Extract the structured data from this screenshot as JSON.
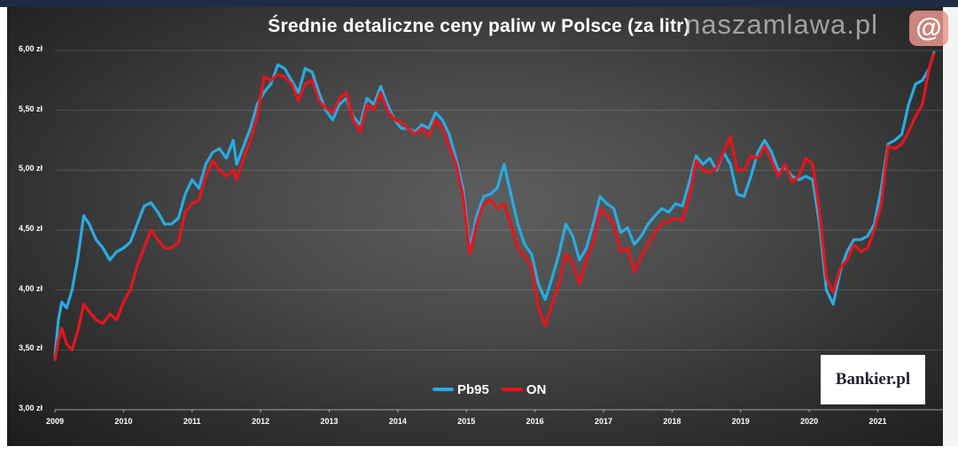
{
  "chart_data": {
    "type": "line",
    "title": "Średnie detaliczne ceny paliw w Polsce (za litr)",
    "xlabel": "",
    "ylabel": "",
    "ylim": [
      3.0,
      6.0
    ],
    "xlim": [
      2009,
      2021.95
    ],
    "yticks": [
      "6,00 zł",
      "5,50 zł",
      "5,00 zł",
      "4,50 zł",
      "4,00 zł",
      "3,50 zł",
      "3,00 zł"
    ],
    "ytick_values": [
      6.0,
      5.5,
      5.0,
      4.5,
      4.0,
      3.5,
      3.0
    ],
    "xticks": [
      "2009",
      "2010",
      "2011",
      "2012",
      "2013",
      "2014",
      "2015",
      "2016",
      "2017",
      "2018",
      "2019",
      "2020",
      "2021"
    ],
    "grid": true,
    "legend_position": "bottom-center",
    "series": [
      {
        "name": "Pb95",
        "color": "#29abe2",
        "points": [
          [
            2009.0,
            3.45
          ],
          [
            2009.05,
            3.75
          ],
          [
            2009.1,
            3.9
          ],
          [
            2009.17,
            3.85
          ],
          [
            2009.25,
            4.0
          ],
          [
            2009.33,
            4.25
          ],
          [
            2009.42,
            4.62
          ],
          [
            2009.5,
            4.55
          ],
          [
            2009.6,
            4.42
          ],
          [
            2009.7,
            4.35
          ],
          [
            2009.8,
            4.25
          ],
          [
            2009.9,
            4.32
          ],
          [
            2010.0,
            4.35
          ],
          [
            2010.1,
            4.4
          ],
          [
            2010.2,
            4.55
          ],
          [
            2010.3,
            4.7
          ],
          [
            2010.4,
            4.73
          ],
          [
            2010.5,
            4.65
          ],
          [
            2010.6,
            4.55
          ],
          [
            2010.7,
            4.55
          ],
          [
            2010.8,
            4.6
          ],
          [
            2010.9,
            4.8
          ],
          [
            2011.0,
            4.92
          ],
          [
            2011.1,
            4.85
          ],
          [
            2011.2,
            5.05
          ],
          [
            2011.3,
            5.15
          ],
          [
            2011.4,
            5.18
          ],
          [
            2011.5,
            5.1
          ],
          [
            2011.6,
            5.25
          ],
          [
            2011.65,
            5.05
          ],
          [
            2011.75,
            5.2
          ],
          [
            2011.85,
            5.35
          ],
          [
            2011.95,
            5.55
          ],
          [
            2012.05,
            5.65
          ],
          [
            2012.15,
            5.72
          ],
          [
            2012.25,
            5.88
          ],
          [
            2012.35,
            5.85
          ],
          [
            2012.45,
            5.75
          ],
          [
            2012.55,
            5.65
          ],
          [
            2012.65,
            5.85
          ],
          [
            2012.75,
            5.82
          ],
          [
            2012.85,
            5.65
          ],
          [
            2012.95,
            5.5
          ],
          [
            2013.05,
            5.42
          ],
          [
            2013.15,
            5.55
          ],
          [
            2013.25,
            5.6
          ],
          [
            2013.35,
            5.45
          ],
          [
            2013.45,
            5.38
          ],
          [
            2013.55,
            5.6
          ],
          [
            2013.65,
            5.55
          ],
          [
            2013.75,
            5.7
          ],
          [
            2013.85,
            5.55
          ],
          [
            2013.95,
            5.42
          ],
          [
            2014.05,
            5.35
          ],
          [
            2014.15,
            5.35
          ],
          [
            2014.25,
            5.32
          ],
          [
            2014.35,
            5.38
          ],
          [
            2014.45,
            5.35
          ],
          [
            2014.55,
            5.48
          ],
          [
            2014.65,
            5.42
          ],
          [
            2014.75,
            5.3
          ],
          [
            2014.85,
            5.1
          ],
          [
            2014.95,
            4.85
          ],
          [
            2015.05,
            4.35
          ],
          [
            2015.15,
            4.62
          ],
          [
            2015.25,
            4.78
          ],
          [
            2015.35,
            4.8
          ],
          [
            2015.45,
            4.85
          ],
          [
            2015.55,
            5.05
          ],
          [
            2015.65,
            4.8
          ],
          [
            2015.75,
            4.55
          ],
          [
            2015.85,
            4.38
          ],
          [
            2015.95,
            4.3
          ],
          [
            2016.05,
            4.05
          ],
          [
            2016.15,
            3.92
          ],
          [
            2016.25,
            4.1
          ],
          [
            2016.35,
            4.3
          ],
          [
            2016.45,
            4.55
          ],
          [
            2016.55,
            4.45
          ],
          [
            2016.65,
            4.25
          ],
          [
            2016.75,
            4.35
          ],
          [
            2016.85,
            4.55
          ],
          [
            2016.95,
            4.78
          ],
          [
            2017.05,
            4.72
          ],
          [
            2017.15,
            4.68
          ],
          [
            2017.25,
            4.48
          ],
          [
            2017.35,
            4.52
          ],
          [
            2017.45,
            4.38
          ],
          [
            2017.55,
            4.45
          ],
          [
            2017.65,
            4.55
          ],
          [
            2017.75,
            4.62
          ],
          [
            2017.85,
            4.68
          ],
          [
            2017.95,
            4.65
          ],
          [
            2018.05,
            4.72
          ],
          [
            2018.15,
            4.7
          ],
          [
            2018.25,
            4.9
          ],
          [
            2018.35,
            5.12
          ],
          [
            2018.45,
            5.05
          ],
          [
            2018.55,
            5.1
          ],
          [
            2018.65,
            5.0
          ],
          [
            2018.75,
            5.15
          ],
          [
            2018.85,
            5.05
          ],
          [
            2018.95,
            4.8
          ],
          [
            2019.05,
            4.78
          ],
          [
            2019.15,
            4.95
          ],
          [
            2019.25,
            5.15
          ],
          [
            2019.35,
            5.25
          ],
          [
            2019.45,
            5.15
          ],
          [
            2019.55,
            5.0
          ],
          [
            2019.65,
            5.02
          ],
          [
            2019.75,
            4.95
          ],
          [
            2019.85,
            4.92
          ],
          [
            2019.95,
            4.95
          ],
          [
            2020.05,
            4.92
          ],
          [
            2020.15,
            4.55
          ],
          [
            2020.25,
            4.0
          ],
          [
            2020.35,
            3.88
          ],
          [
            2020.45,
            4.15
          ],
          [
            2020.55,
            4.32
          ],
          [
            2020.65,
            4.42
          ],
          [
            2020.75,
            4.42
          ],
          [
            2020.85,
            4.45
          ],
          [
            2020.95,
            4.55
          ],
          [
            2021.05,
            4.85
          ],
          [
            2021.15,
            5.22
          ],
          [
            2021.25,
            5.25
          ],
          [
            2021.35,
            5.3
          ],
          [
            2021.45,
            5.55
          ],
          [
            2021.55,
            5.72
          ],
          [
            2021.65,
            5.75
          ],
          [
            2021.75,
            5.85
          ],
          [
            2021.82,
            5.98
          ]
        ]
      },
      {
        "name": "ON",
        "color": "#e8141c",
        "points": [
          [
            2009.0,
            3.42
          ],
          [
            2009.05,
            3.58
          ],
          [
            2009.1,
            3.68
          ],
          [
            2009.17,
            3.55
          ],
          [
            2009.25,
            3.5
          ],
          [
            2009.33,
            3.65
          ],
          [
            2009.42,
            3.88
          ],
          [
            2009.5,
            3.82
          ],
          [
            2009.6,
            3.75
          ],
          [
            2009.7,
            3.72
          ],
          [
            2009.8,
            3.8
          ],
          [
            2009.9,
            3.75
          ],
          [
            2010.0,
            3.9
          ],
          [
            2010.1,
            4.0
          ],
          [
            2010.2,
            4.2
          ],
          [
            2010.3,
            4.35
          ],
          [
            2010.4,
            4.5
          ],
          [
            2010.5,
            4.42
          ],
          [
            2010.6,
            4.35
          ],
          [
            2010.7,
            4.35
          ],
          [
            2010.8,
            4.4
          ],
          [
            2010.9,
            4.65
          ],
          [
            2011.0,
            4.72
          ],
          [
            2011.1,
            4.75
          ],
          [
            2011.2,
            4.95
          ],
          [
            2011.3,
            5.08
          ],
          [
            2011.4,
            5.0
          ],
          [
            2011.5,
            4.95
          ],
          [
            2011.6,
            5.0
          ],
          [
            2011.65,
            4.92
          ],
          [
            2011.75,
            5.1
          ],
          [
            2011.85,
            5.25
          ],
          [
            2011.95,
            5.45
          ],
          [
            2012.05,
            5.78
          ],
          [
            2012.15,
            5.75
          ],
          [
            2012.25,
            5.8
          ],
          [
            2012.35,
            5.78
          ],
          [
            2012.45,
            5.72
          ],
          [
            2012.55,
            5.58
          ],
          [
            2012.65,
            5.72
          ],
          [
            2012.75,
            5.75
          ],
          [
            2012.85,
            5.58
          ],
          [
            2012.95,
            5.52
          ],
          [
            2013.05,
            5.48
          ],
          [
            2013.15,
            5.6
          ],
          [
            2013.25,
            5.65
          ],
          [
            2013.35,
            5.42
          ],
          [
            2013.45,
            5.32
          ],
          [
            2013.55,
            5.55
          ],
          [
            2013.65,
            5.5
          ],
          [
            2013.75,
            5.65
          ],
          [
            2013.85,
            5.5
          ],
          [
            2013.95,
            5.42
          ],
          [
            2014.05,
            5.4
          ],
          [
            2014.15,
            5.35
          ],
          [
            2014.25,
            5.3
          ],
          [
            2014.35,
            5.35
          ],
          [
            2014.45,
            5.28
          ],
          [
            2014.55,
            5.42
          ],
          [
            2014.65,
            5.35
          ],
          [
            2014.75,
            5.2
          ],
          [
            2014.85,
            5.05
          ],
          [
            2014.95,
            4.78
          ],
          [
            2015.05,
            4.3
          ],
          [
            2015.15,
            4.55
          ],
          [
            2015.25,
            4.72
          ],
          [
            2015.35,
            4.75
          ],
          [
            2015.45,
            4.68
          ],
          [
            2015.55,
            4.72
          ],
          [
            2015.65,
            4.55
          ],
          [
            2015.75,
            4.35
          ],
          [
            2015.85,
            4.28
          ],
          [
            2015.95,
            4.2
          ],
          [
            2016.05,
            3.85
          ],
          [
            2016.15,
            3.7
          ],
          [
            2016.25,
            3.88
          ],
          [
            2016.35,
            4.05
          ],
          [
            2016.45,
            4.3
          ],
          [
            2016.55,
            4.22
          ],
          [
            2016.65,
            4.05
          ],
          [
            2016.75,
            4.25
          ],
          [
            2016.85,
            4.4
          ],
          [
            2016.95,
            4.68
          ],
          [
            2017.05,
            4.62
          ],
          [
            2017.15,
            4.55
          ],
          [
            2017.25,
            4.32
          ],
          [
            2017.35,
            4.35
          ],
          [
            2017.45,
            4.15
          ],
          [
            2017.55,
            4.28
          ],
          [
            2017.65,
            4.38
          ],
          [
            2017.75,
            4.48
          ],
          [
            2017.85,
            4.55
          ],
          [
            2017.95,
            4.58
          ],
          [
            2018.05,
            4.6
          ],
          [
            2018.15,
            4.58
          ],
          [
            2018.25,
            4.78
          ],
          [
            2018.35,
            5.08
          ],
          [
            2018.45,
            5.0
          ],
          [
            2018.55,
            4.98
          ],
          [
            2018.65,
            5.02
          ],
          [
            2018.75,
            5.15
          ],
          [
            2018.85,
            5.28
          ],
          [
            2018.95,
            5.0
          ],
          [
            2019.05,
            5.0
          ],
          [
            2019.15,
            5.12
          ],
          [
            2019.25,
            5.1
          ],
          [
            2019.35,
            5.2
          ],
          [
            2019.45,
            5.08
          ],
          [
            2019.55,
            4.95
          ],
          [
            2019.65,
            5.05
          ],
          [
            2019.75,
            4.9
          ],
          [
            2019.85,
            4.95
          ],
          [
            2019.95,
            5.1
          ],
          [
            2020.05,
            5.05
          ],
          [
            2020.15,
            4.65
          ],
          [
            2020.25,
            4.1
          ],
          [
            2020.35,
            3.98
          ],
          [
            2020.45,
            4.18
          ],
          [
            2020.55,
            4.25
          ],
          [
            2020.65,
            4.38
          ],
          [
            2020.75,
            4.32
          ],
          [
            2020.85,
            4.35
          ],
          [
            2020.95,
            4.5
          ],
          [
            2021.05,
            4.72
          ],
          [
            2021.15,
            5.2
          ],
          [
            2021.25,
            5.18
          ],
          [
            2021.35,
            5.22
          ],
          [
            2021.45,
            5.32
          ],
          [
            2021.55,
            5.45
          ],
          [
            2021.65,
            5.55
          ],
          [
            2021.75,
            5.85
          ],
          [
            2021.82,
            5.97
          ]
        ]
      }
    ],
    "annotations": {
      "watermark": "naszamlawa.pl",
      "watermark_at": "@",
      "logo": "Bankier.pl"
    }
  }
}
